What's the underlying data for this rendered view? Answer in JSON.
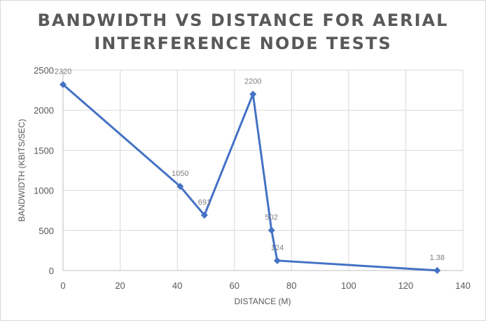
{
  "chart_data": {
    "type": "scatter",
    "title_lines": [
      "BANDWIDTH VS DISTANCE FOR AERIAL",
      "INTERFERENCE NODE TESTS"
    ],
    "xlabel": "DISTANCE (M)",
    "ylabel": "BANDWIDTH (KBITS/SEC)",
    "xlim": [
      0,
      140
    ],
    "ylim": [
      0,
      2500
    ],
    "x_ticks": [
      0,
      20,
      40,
      60,
      80,
      100,
      120,
      140
    ],
    "y_ticks": [
      0,
      500,
      1000,
      1500,
      2000,
      2500
    ],
    "grid": true,
    "line_color": "#4472c4",
    "series": [
      {
        "x": [
          0,
          41,
          49.5,
          66.5,
          73,
          75,
          131
        ],
        "y": [
          2320,
          1050,
          691,
          2200,
          502,
          124,
          1.38
        ],
        "labels": [
          "2320",
          "1050",
          "691",
          "2200",
          "502",
          "124",
          "1.38"
        ]
      }
    ]
  }
}
